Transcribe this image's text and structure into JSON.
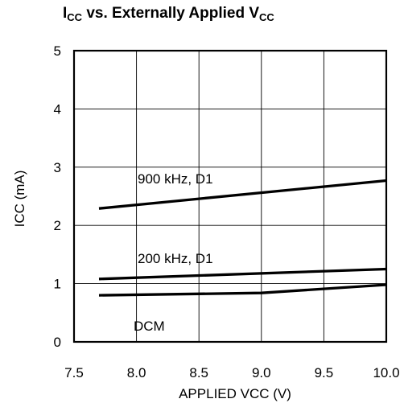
{
  "chart_data": {
    "type": "line",
    "title_main_a": "I",
    "title_sub_a": "CC",
    "title_main_b": " vs. Externally Applied V",
    "title_sub_b": "CC",
    "xlabel": "APPLIED VCC (V)",
    "ylabel": "ICC (mA)",
    "xlim": [
      7.5,
      10.0
    ],
    "ylim": [
      0,
      5
    ],
    "x_ticks": [
      "7.5",
      "8.0",
      "8.5",
      "9.0",
      "9.5",
      "10.0"
    ],
    "y_ticks": [
      "0",
      "1",
      "2",
      "3",
      "4",
      "5"
    ],
    "grid": true,
    "series": [
      {
        "name": "900 kHz, D1",
        "x": [
          7.7,
          10.0
        ],
        "y": [
          2.29,
          2.77
        ]
      },
      {
        "name": "200 kHz, D1",
        "x": [
          7.7,
          10.0
        ],
        "y": [
          1.08,
          1.25
        ]
      },
      {
        "name": "DCM",
        "x": [
          7.7,
          9.0,
          10.0
        ],
        "y": [
          0.8,
          0.84,
          0.98
        ]
      }
    ]
  }
}
